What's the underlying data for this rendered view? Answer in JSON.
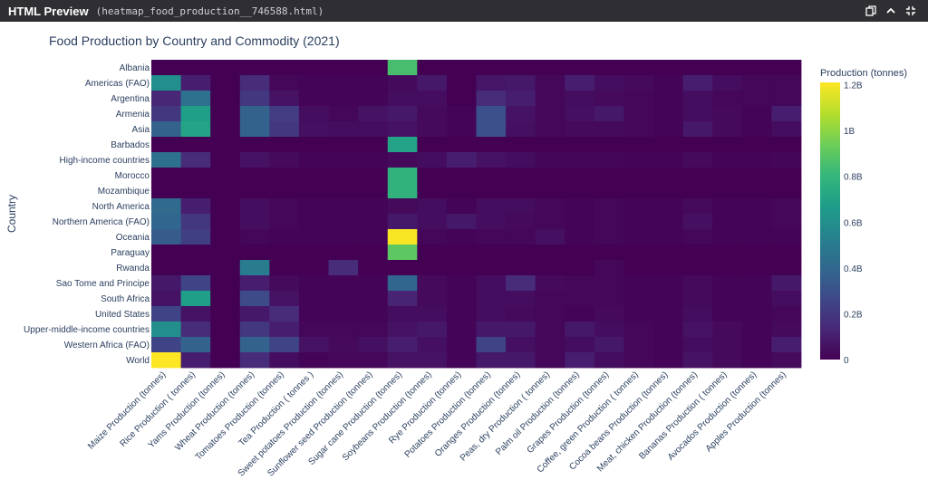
{
  "window": {
    "app_title": "HTML Preview",
    "file_name": "(heatmap_food_production__746588.html)",
    "icons": [
      "copy-icon",
      "chevron-up-icon",
      "collapse-icon"
    ]
  },
  "chart_data": {
    "type": "heatmap",
    "title": "Food Production by Country and Commodity (2021)",
    "xlabel": "",
    "ylabel": "Country",
    "colorbar_title": "Production (tonnes)",
    "colorscale": "Viridis",
    "zmin": 0,
    "zmax": 1210000000,
    "colorbar_ticks": [
      {
        "value": 0,
        "label": "0"
      },
      {
        "value": 200000000,
        "label": "0.2B"
      },
      {
        "value": 400000000,
        "label": "0.4B"
      },
      {
        "value": 600000000,
        "label": "0.6B"
      },
      {
        "value": 800000000,
        "label": "0.8B"
      },
      {
        "value": 1000000000,
        "label": "1B"
      },
      {
        "value": 1200000000,
        "label": "1.2B"
      }
    ],
    "x": [
      "Maize Production (tonnes)",
      "Rice  Production ( tonnes)",
      "Yams  Production (tonnes)",
      "Wheat Production (tonnes)",
      "Tomatoes Production (tonnes)",
      "Tea  Production ( tonnes )",
      "Sweet potatoes  Production (tonnes)",
      "Sunflower seed  Production (tonnes)",
      "Sugar cane Production (tonnes)",
      "Soybeans  Production (tonnes)",
      "Rye  Production (tonnes)",
      "Potatoes  Production (tonnes)",
      "Oranges  Production (tonnes)",
      "Peas, dry Production ( tonnes)",
      "Palm oil  Production (tonnes)",
      "Grapes  Production (tonnes)",
      "Coffee, green Production ( tonnes)",
      "Cocoa beans Production (tonnes)",
      "Meat, chicken  Production (tonnes)",
      "Bananas  Production ( tonnes)",
      "Avocados Production (tonnes)",
      "Apples Production (tonnes)"
    ],
    "y": [
      "Albania",
      "Americas (FAO)",
      "Argentina",
      "Armenia",
      "Asia",
      "Barbados",
      "High-income countries",
      "Morocco",
      "Mozambique",
      "North America",
      "Northern America (FAO)",
      "Oceania",
      "Paraguay",
      "Rwanda",
      "Sao Tome and Principe",
      "South Africa",
      "United States",
      "Upper-middle-income countries",
      "Western Africa (FAO)",
      "World"
    ],
    "z": [
      [
        0,
        0,
        0,
        0,
        0,
        0,
        0,
        0,
        850000000,
        0,
        0,
        0,
        0,
        0,
        0,
        0,
        0,
        0,
        0,
        0,
        0,
        0
      ],
      [
        600000000,
        100000000,
        0,
        150000000,
        20000000,
        10000000,
        10000000,
        10000000,
        30000000,
        80000000,
        0,
        70000000,
        80000000,
        20000000,
        100000000,
        40000000,
        30000000,
        10000000,
        100000000,
        40000000,
        20000000,
        20000000
      ],
      [
        130000000,
        450000000,
        0,
        200000000,
        60000000,
        10000000,
        10000000,
        10000000,
        40000000,
        40000000,
        0,
        150000000,
        100000000,
        20000000,
        40000000,
        30000000,
        20000000,
        10000000,
        40000000,
        20000000,
        20000000,
        20000000
      ],
      [
        200000000,
        680000000,
        0,
        380000000,
        220000000,
        40000000,
        20000000,
        60000000,
        80000000,
        30000000,
        10000000,
        300000000,
        60000000,
        20000000,
        50000000,
        80000000,
        20000000,
        10000000,
        40000000,
        30000000,
        10000000,
        100000000
      ],
      [
        380000000,
        700000000,
        0,
        380000000,
        200000000,
        50000000,
        40000000,
        40000000,
        60000000,
        30000000,
        10000000,
        300000000,
        50000000,
        20000000,
        30000000,
        30000000,
        20000000,
        10000000,
        80000000,
        30000000,
        10000000,
        40000000
      ],
      [
        0,
        0,
        0,
        0,
        0,
        0,
        0,
        0,
        700000000,
        0,
        0,
        0,
        0,
        0,
        0,
        0,
        0,
        0,
        0,
        0,
        0,
        0
      ],
      [
        450000000,
        150000000,
        0,
        60000000,
        30000000,
        10000000,
        10000000,
        10000000,
        30000000,
        40000000,
        100000000,
        60000000,
        40000000,
        20000000,
        20000000,
        20000000,
        10000000,
        10000000,
        30000000,
        10000000,
        10000000,
        20000000
      ],
      [
        0,
        0,
        0,
        0,
        0,
        0,
        0,
        0,
        780000000,
        0,
        0,
        0,
        0,
        0,
        0,
        0,
        0,
        0,
        0,
        0,
        0,
        0
      ],
      [
        0,
        0,
        0,
        0,
        0,
        0,
        0,
        0,
        780000000,
        0,
        0,
        0,
        0,
        0,
        0,
        0,
        0,
        0,
        0,
        0,
        0,
        0
      ],
      [
        420000000,
        100000000,
        0,
        40000000,
        20000000,
        10000000,
        10000000,
        10000000,
        30000000,
        40000000,
        10000000,
        40000000,
        40000000,
        20000000,
        10000000,
        20000000,
        10000000,
        10000000,
        30000000,
        10000000,
        10000000,
        20000000
      ],
      [
        400000000,
        200000000,
        0,
        40000000,
        20000000,
        10000000,
        10000000,
        10000000,
        80000000,
        40000000,
        80000000,
        40000000,
        30000000,
        20000000,
        10000000,
        20000000,
        10000000,
        10000000,
        50000000,
        10000000,
        10000000,
        20000000
      ],
      [
        350000000,
        230000000,
        0,
        20000000,
        10000000,
        10000000,
        10000000,
        10000000,
        1200000000,
        20000000,
        10000000,
        20000000,
        20000000,
        50000000,
        10000000,
        20000000,
        10000000,
        10000000,
        20000000,
        10000000,
        10000000,
        10000000
      ],
      [
        0,
        0,
        0,
        0,
        0,
        0,
        0,
        0,
        900000000,
        0,
        0,
        0,
        0,
        0,
        0,
        0,
        0,
        0,
        0,
        0,
        0,
        0
      ],
      [
        0,
        0,
        0,
        500000000,
        0,
        0,
        150000000,
        0,
        0,
        0,
        0,
        0,
        0,
        0,
        0,
        20000000,
        0,
        0,
        0,
        0,
        0,
        0
      ],
      [
        80000000,
        250000000,
        0,
        100000000,
        30000000,
        10000000,
        10000000,
        10000000,
        400000000,
        30000000,
        10000000,
        40000000,
        150000000,
        30000000,
        20000000,
        20000000,
        10000000,
        10000000,
        30000000,
        10000000,
        10000000,
        80000000
      ],
      [
        60000000,
        680000000,
        0,
        280000000,
        60000000,
        10000000,
        10000000,
        10000000,
        120000000,
        30000000,
        10000000,
        40000000,
        40000000,
        20000000,
        20000000,
        20000000,
        10000000,
        10000000,
        30000000,
        10000000,
        10000000,
        40000000
      ],
      [
        250000000,
        60000000,
        0,
        80000000,
        150000000,
        10000000,
        10000000,
        10000000,
        40000000,
        40000000,
        10000000,
        40000000,
        30000000,
        20000000,
        10000000,
        30000000,
        10000000,
        10000000,
        40000000,
        10000000,
        10000000,
        20000000
      ],
      [
        600000000,
        150000000,
        0,
        200000000,
        100000000,
        20000000,
        20000000,
        20000000,
        60000000,
        80000000,
        10000000,
        80000000,
        80000000,
        20000000,
        80000000,
        40000000,
        20000000,
        10000000,
        60000000,
        30000000,
        10000000,
        30000000
      ],
      [
        250000000,
        380000000,
        0,
        380000000,
        250000000,
        60000000,
        30000000,
        50000000,
        100000000,
        50000000,
        10000000,
        250000000,
        50000000,
        20000000,
        40000000,
        80000000,
        20000000,
        10000000,
        40000000,
        30000000,
        10000000,
        100000000
      ],
      [
        1210000000,
        100000000,
        0,
        150000000,
        40000000,
        10000000,
        20000000,
        20000000,
        60000000,
        60000000,
        10000000,
        80000000,
        80000000,
        20000000,
        100000000,
        40000000,
        20000000,
        10000000,
        60000000,
        30000000,
        10000000,
        30000000
      ]
    ]
  }
}
